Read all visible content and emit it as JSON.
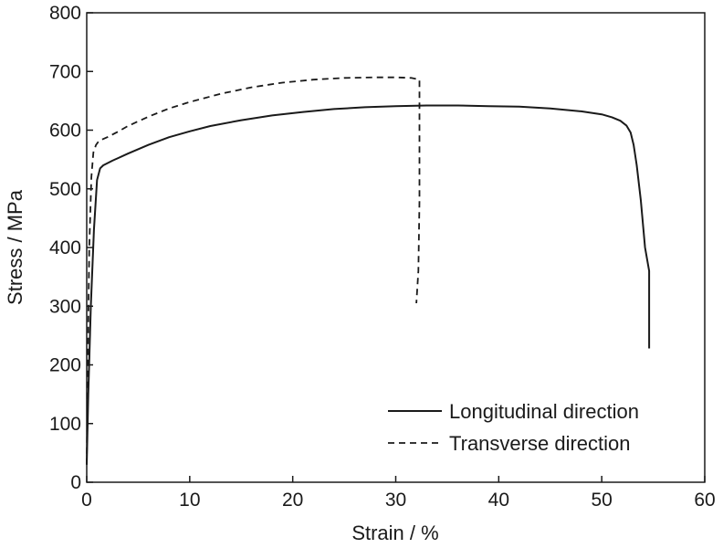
{
  "chart_data": {
    "type": "line",
    "title": "",
    "xlabel": "Strain / %",
    "ylabel": "Stress / MPa",
    "xlim": [
      0,
      60
    ],
    "ylim": [
      0,
      800
    ],
    "xticks": [
      0,
      10,
      20,
      30,
      40,
      50,
      60
    ],
    "yticks": [
      0,
      100,
      200,
      300,
      400,
      500,
      600,
      700,
      800
    ],
    "grid": false,
    "legend_position": "bottom-right",
    "series": [
      {
        "name": "Longitudinal direction",
        "style": "solid",
        "color": "#1a1a1a",
        "x": [
          0,
          0.15,
          0.4,
          0.7,
          1.0,
          1.3,
          1.6,
          2.5,
          4,
          6,
          8,
          10,
          12,
          15,
          18,
          21,
          24,
          27,
          30,
          33,
          36,
          39,
          42,
          45,
          48,
          50,
          51,
          51.8,
          52.4,
          52.8,
          53.1,
          53.4,
          53.8,
          54.2,
          54.6,
          54.6
        ],
        "y": [
          30,
          150,
          300,
          430,
          515,
          535,
          540,
          548,
          560,
          575,
          588,
          598,
          607,
          617,
          625,
          631,
          636,
          639,
          641,
          642,
          642,
          641,
          640,
          637,
          632,
          627,
          622,
          616,
          608,
          596,
          575,
          540,
          480,
          400,
          360,
          228
        ]
      },
      {
        "name": "Transverse direction",
        "style": "dashed",
        "color": "#1a1a1a",
        "x": [
          0,
          0.1,
          0.25,
          0.45,
          0.65,
          0.9,
          1.2,
          2,
          3,
          4,
          6,
          8,
          10,
          13,
          16,
          19,
          22,
          25,
          28,
          30,
          31.5,
          32.3,
          32.3,
          32.2,
          32.0
        ],
        "y": [
          30,
          200,
          400,
          520,
          562,
          575,
          582,
          588,
          597,
          607,
          623,
          637,
          648,
          662,
          673,
          681,
          686,
          689,
          690,
          690,
          689,
          686,
          480,
          360,
          305
        ]
      }
    ]
  }
}
